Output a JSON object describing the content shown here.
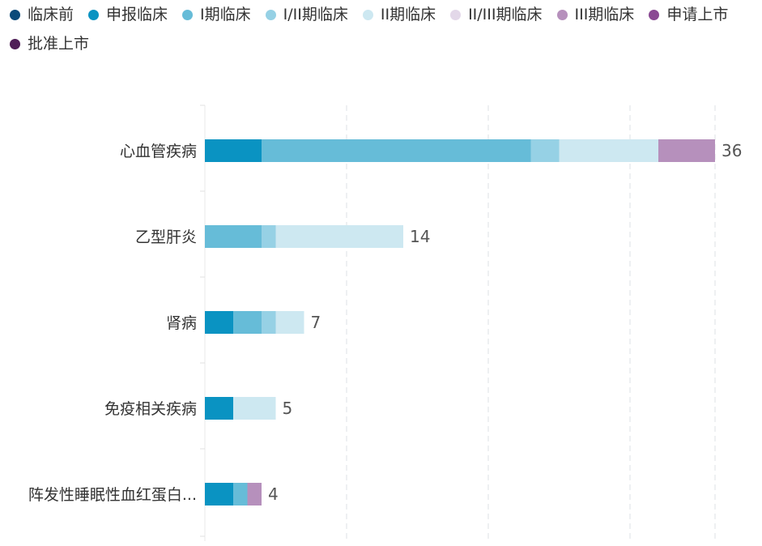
{
  "legend": {
    "items": [
      {
        "label": "临床前",
        "color": "#0b4a7a"
      },
      {
        "label": "申报临床",
        "color": "#0a93c2"
      },
      {
        "label": "I期临床",
        "color": "#66bcd8"
      },
      {
        "label": "I/II期临床",
        "color": "#96d1e5"
      },
      {
        "label": "II期临床",
        "color": "#cde8f1"
      },
      {
        "label": "II/III期临床",
        "color": "#e3d8e9"
      },
      {
        "label": "III期临床",
        "color": "#b690bc"
      },
      {
        "label": "申请上市",
        "color": "#8a4a93"
      },
      {
        "label": "批准上市",
        "color": "#4f1e57"
      }
    ]
  },
  "chart_data": {
    "type": "bar",
    "orientation": "horizontal",
    "stacked": true,
    "categories": [
      "心血管疾病",
      "乙型肝炎",
      "肾病",
      "免疫相关疾病",
      "阵发性睡眠性血红蛋白..."
    ],
    "series": [
      {
        "name": "临床前",
        "color": "#0b4a7a",
        "values": [
          0,
          0,
          0,
          0,
          0
        ]
      },
      {
        "name": "申报临床",
        "color": "#0a93c2",
        "values": [
          4,
          0,
          2,
          2,
          2
        ]
      },
      {
        "name": "I期临床",
        "color": "#66bcd8",
        "values": [
          19,
          4,
          2,
          0,
          1
        ]
      },
      {
        "name": "I/II期临床",
        "color": "#96d1e5",
        "values": [
          2,
          1,
          1,
          0,
          0
        ]
      },
      {
        "name": "II期临床",
        "color": "#cde8f1",
        "values": [
          7,
          9,
          2,
          3,
          0
        ]
      },
      {
        "name": "II/III期临床",
        "color": "#e3d8e9",
        "values": [
          0,
          0,
          0,
          0,
          0
        ]
      },
      {
        "name": "III期临床",
        "color": "#b690bc",
        "values": [
          4,
          0,
          0,
          0,
          1
        ]
      },
      {
        "name": "申请上市",
        "color": "#8a4a93",
        "values": [
          0,
          0,
          0,
          0,
          0
        ]
      },
      {
        "name": "批准上市",
        "color": "#4f1e57",
        "values": [
          0,
          0,
          0,
          0,
          0
        ]
      }
    ],
    "totals": [
      36,
      14,
      7,
      5,
      4
    ],
    "xlim": [
      0,
      36
    ],
    "grid": "vertical-dashed",
    "legend_position": "top"
  }
}
